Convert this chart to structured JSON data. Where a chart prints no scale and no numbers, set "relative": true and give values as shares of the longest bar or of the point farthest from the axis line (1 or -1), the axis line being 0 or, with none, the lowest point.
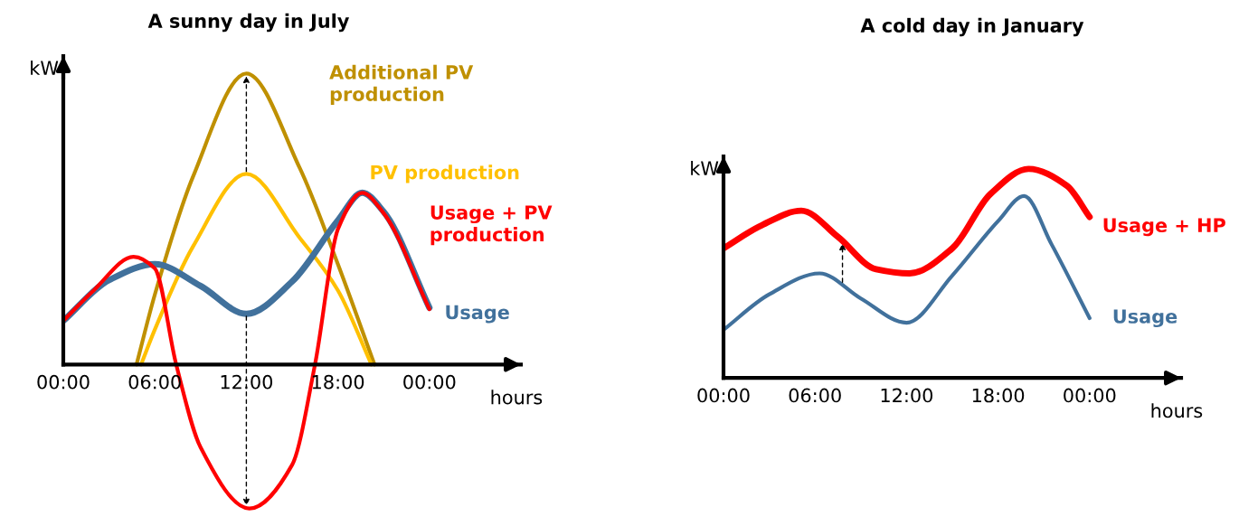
{
  "chart_data": [
    {
      "type": "line",
      "title": "A sunny day in July",
      "xlabel": "hours",
      "ylabel": "kW",
      "relative": true,
      "xlim": [
        0,
        30
      ],
      "xticks": [
        {
          "value": 0,
          "label": "00:00"
        },
        {
          "value": 6,
          "label": "06:00"
        },
        {
          "value": 12,
          "label": "12:00"
        },
        {
          "value": 18,
          "label": "18:00"
        },
        {
          "value": 24,
          "label": "00:00"
        }
      ],
      "tick_labels": "x",
      "legend": false,
      "grid": false,
      "series": [
        {
          "name": "Additional PV production",
          "color": "#bf9000",
          "x": [
            4.8,
            6,
            8.5,
            12,
            15.5,
            18,
            20.4
          ],
          "values": [
            0,
            0.24,
            0.645,
            1,
            0.675,
            0.345,
            0
          ]
        },
        {
          "name": "PV production",
          "color": "#ffc000",
          "x": [
            5.1,
            6,
            8.5,
            12,
            15.5,
            18,
            20.2
          ],
          "values": [
            0,
            0.12,
            0.405,
            0.655,
            0.435,
            0.255,
            0
          ]
        },
        {
          "name": "Usage",
          "color": "#41719c",
          "x": [
            0,
            3,
            6,
            9,
            12,
            15,
            18,
            19.6,
            21,
            24
          ],
          "values": [
            0.15,
            0.29,
            0.345,
            0.27,
            0.174,
            0.285,
            0.495,
            0.59,
            0.525,
            0.195
          ]
        },
        {
          "name": "Usage + PV production",
          "color": "#ff0000",
          "x": [
            0,
            2,
            4.6,
            6,
            7.4,
            9,
            12.2,
            15,
            16.5,
            18,
            19.6,
            21,
            24
          ],
          "values": [
            0.15,
            0.255,
            0.37,
            0.33,
            0,
            -0.285,
            -0.495,
            -0.345,
            0,
            0.465,
            0.59,
            0.52,
            0.19
          ]
        }
      ]
    },
    {
      "type": "line",
      "title": "A cold day in January",
      "xlabel": "hours",
      "ylabel": "kW",
      "relative": true,
      "xlim": [
        0,
        30
      ],
      "xticks": [
        {
          "value": 0,
          "label": "00:00"
        },
        {
          "value": 6,
          "label": "06:00"
        },
        {
          "value": 12,
          "label": "12:00"
        },
        {
          "value": 18,
          "label": "18:00"
        },
        {
          "value": 24,
          "label": "00:00"
        }
      ],
      "tick_labels": "x",
      "legend": false,
      "grid": false,
      "series": [
        {
          "name": "Usage",
          "color": "#41719c",
          "x": [
            0,
            3,
            6.3,
            9,
            12,
            15,
            18,
            19.7,
            21.5,
            24
          ],
          "values": [
            0.23,
            0.4,
            0.5,
            0.38,
            0.264,
            0.49,
            0.75,
            0.87,
            0.64,
            0.286
          ]
        },
        {
          "name": "Usage + HP",
          "color": "#ff0000",
          "x": [
            0,
            2.5,
            5.1,
            7.5,
            10,
            12.2,
            15,
            17.5,
            20,
            22.5,
            24
          ],
          "values": [
            0.62,
            0.73,
            0.8,
            0.675,
            0.52,
            0.5,
            0.62,
            0.88,
            1.0,
            0.92,
            0.77
          ]
        }
      ]
    }
  ]
}
